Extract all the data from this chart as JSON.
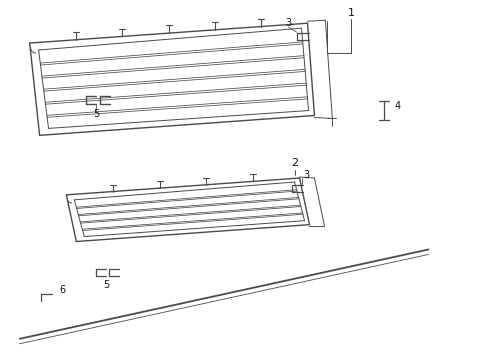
{
  "bg_color": "#ffffff",
  "line_color": "#4a4a4a",
  "text_color": "#111111",
  "fig_width": 4.9,
  "fig_height": 3.6,
  "dpi": 100
}
